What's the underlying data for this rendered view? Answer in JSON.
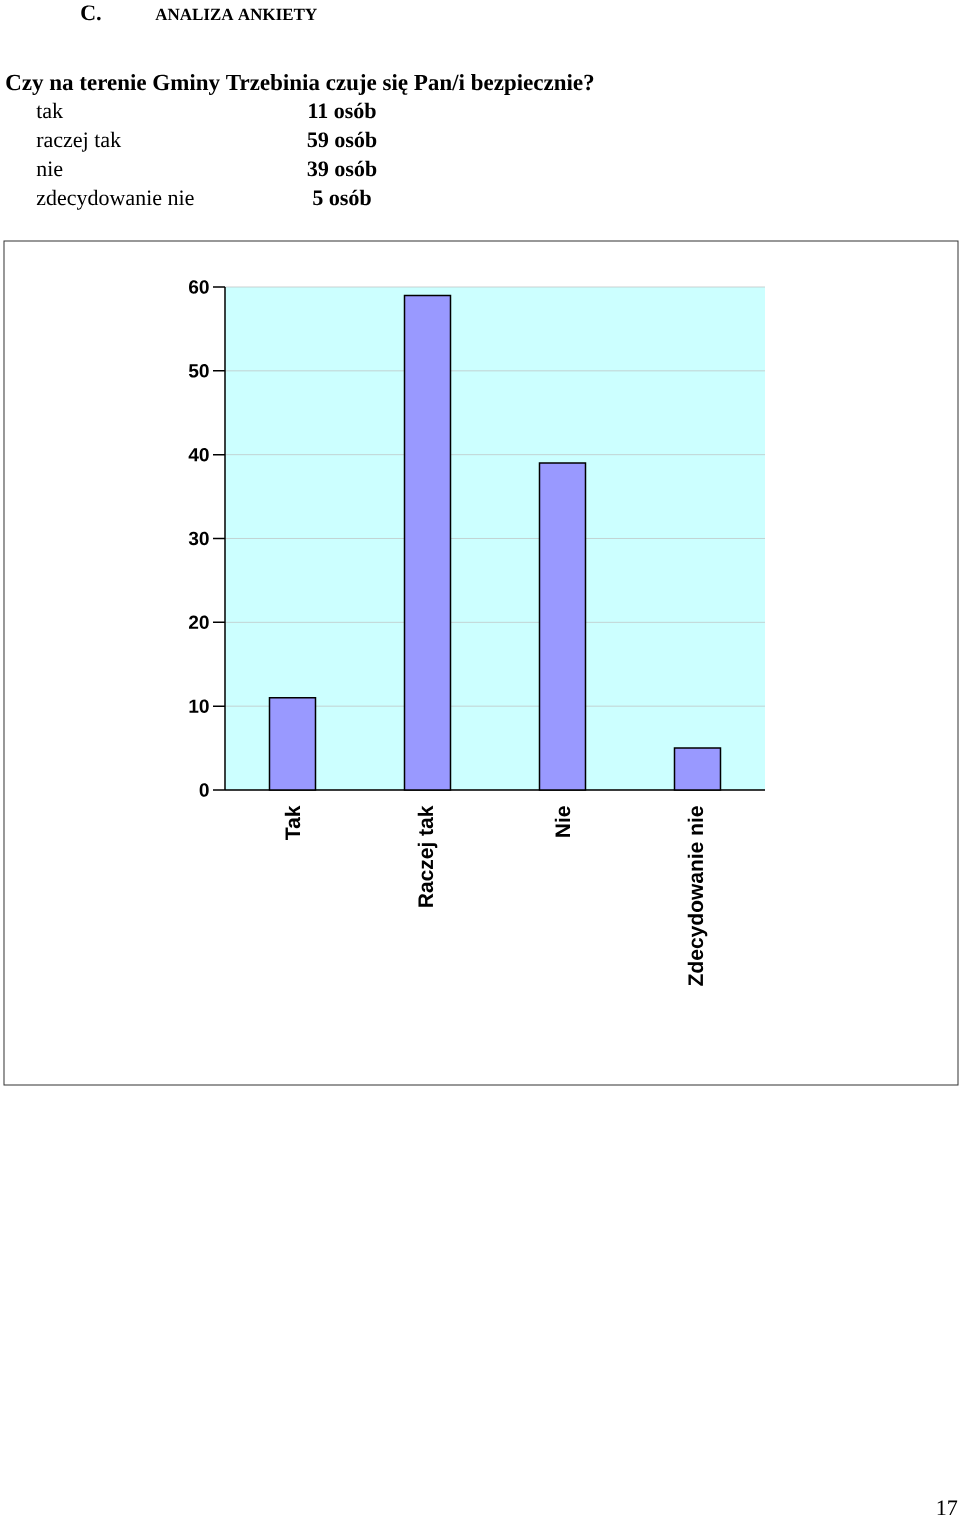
{
  "chart_data": {
    "type": "bar",
    "title": "Czy na terenie  Gminy Trzebinia czuje się Pan/i bezpiecznie?",
    "categories": [
      "Tak",
      "Raczej tak",
      "Nie",
      "Zdecydowanie nie"
    ],
    "values": [
      11,
      59,
      39,
      5
    ],
    "color": "#9999ff",
    "ylim": [
      0,
      60
    ],
    "yticks": [
      0,
      10,
      20,
      30,
      40,
      50,
      60
    ],
    "grid": "y",
    "annotations": [
      "C.",
      "ANALIZA ANKIETY",
      "tak",
      "11 osób",
      "raczej tak",
      "59 osób",
      "nie",
      "39 osób",
      "zdecydowanie nie",
      "5 osób",
      "17"
    ]
  }
}
